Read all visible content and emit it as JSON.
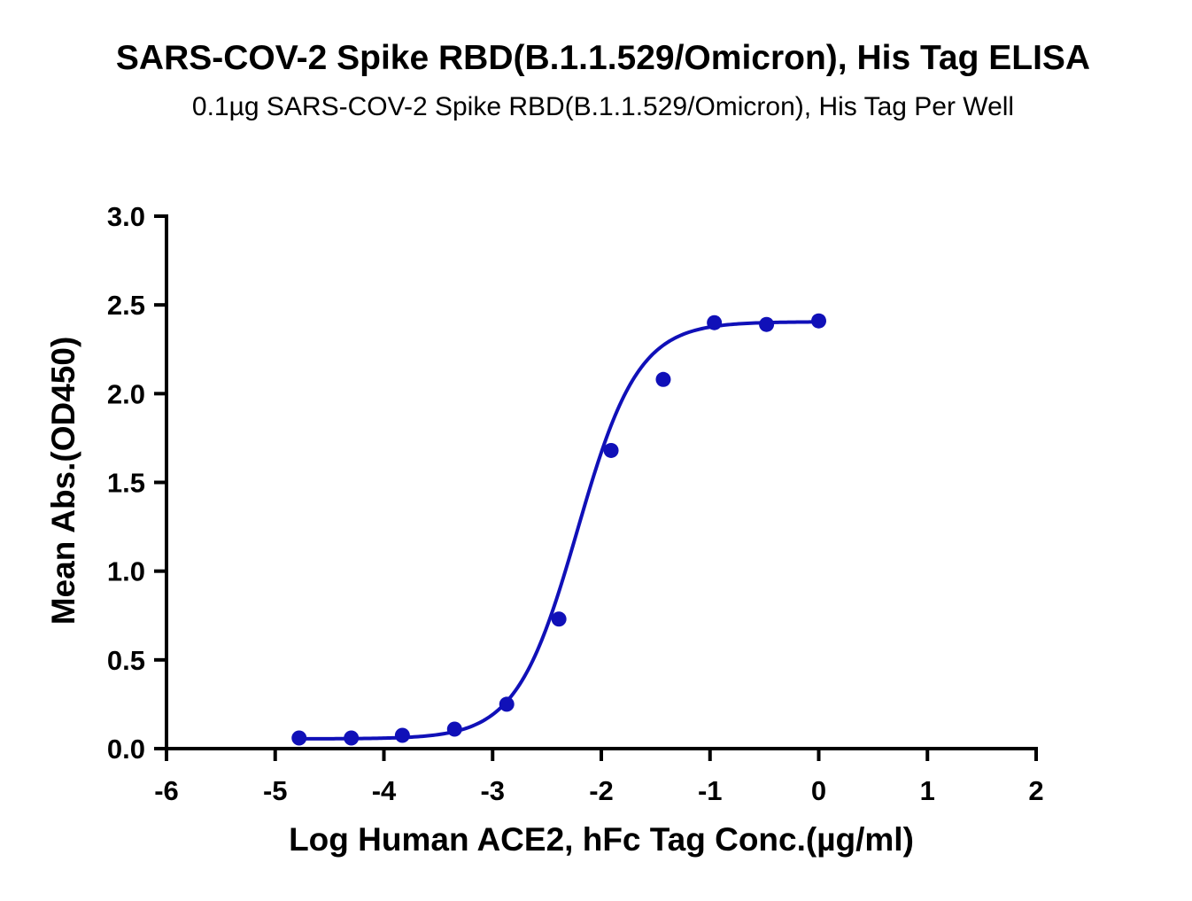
{
  "chart_data": {
    "type": "scatter",
    "title": "SARS-COV-2 Spike RBD(B.1.1.529/Omicron), His Tag ELISA",
    "subtitle": "0.1µg SARS-COV-2 Spike RBD(B.1.1.529/Omicron), His Tag Per Well",
    "xlabel": "Log Human ACE2, hFc Tag Conc.(µg/ml)",
    "ylabel": "Mean Abs.(OD450)",
    "xlim": [
      -6,
      2
    ],
    "ylim": [
      0,
      3.0
    ],
    "x_ticks": [
      "-6",
      "-5",
      "-4",
      "-3",
      "-2",
      "-1",
      "0",
      "1",
      "2"
    ],
    "y_ticks": [
      "0.0",
      "0.5",
      "1.0",
      "1.5",
      "2.0",
      "2.5",
      "3.0"
    ],
    "series": [
      {
        "name": "Human ACE2, hFc Tag",
        "color": "#1010b8",
        "x": [
          -4.78,
          -4.3,
          -3.83,
          -3.35,
          -2.87,
          -2.39,
          -1.91,
          -1.43,
          -0.96,
          -0.48,
          0.0
        ],
        "y": [
          0.06,
          0.06,
          0.075,
          0.11,
          0.25,
          0.73,
          1.68,
          2.08,
          2.4,
          2.39,
          2.41
        ]
      }
    ],
    "fit": {
      "type": "4PL",
      "bottom": 0.055,
      "top": 2.405,
      "logEC50": -2.22,
      "hill": 1.55,
      "x_range": [
        -4.78,
        0.0
      ]
    },
    "grid": false,
    "legend": "none"
  }
}
